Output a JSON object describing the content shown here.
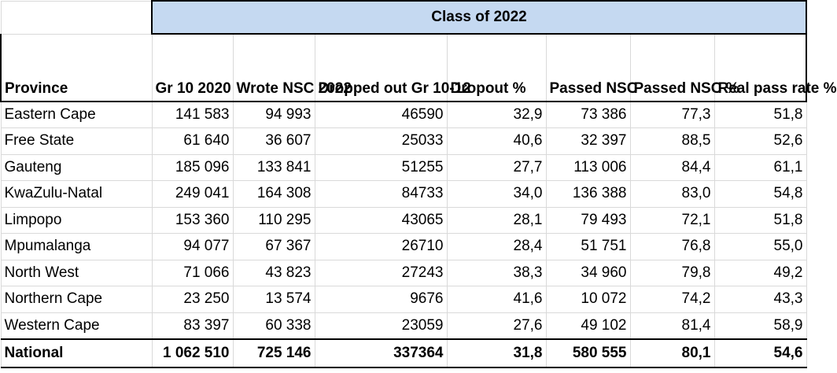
{
  "table": {
    "group_header": "Class of 2022",
    "columns": [
      "Province",
      "Gr 10 2020",
      "Wrote NSC 2022",
      "Dropped out Gr 10-12",
      "Dropout %",
      "Passed NSC",
      "Passed NSC %",
      "Real pass rate %"
    ],
    "rows": [
      [
        "Eastern Cape",
        "141 583",
        "94 993",
        "46590",
        "32,9",
        "73 386",
        "77,3",
        "51,8"
      ],
      [
        "Free State",
        "61 640",
        "36 607",
        "25033",
        "40,6",
        "32 397",
        "88,5",
        "52,6"
      ],
      [
        "Gauteng",
        "185 096",
        "133 841",
        "51255",
        "27,7",
        "113 006",
        "84,4",
        "61,1"
      ],
      [
        "KwaZulu-Natal",
        "249 041",
        "164 308",
        "84733",
        "34,0",
        "136 388",
        "83,0",
        "54,8"
      ],
      [
        "Limpopo",
        "153 360",
        "110 295",
        "43065",
        "28,1",
        "79 493",
        "72,1",
        "51,8"
      ],
      [
        "Mpumalanga",
        "94 077",
        "67 367",
        "26710",
        "28,4",
        "51 751",
        "76,8",
        "55,0"
      ],
      [
        "North West",
        "71 066",
        "43 823",
        "27243",
        "38,3",
        "34 960",
        "79,8",
        "49,2"
      ],
      [
        "Northern Cape",
        "23 250",
        "13 574",
        "9676",
        "41,6",
        "10 072",
        "74,2",
        "43,3"
      ],
      [
        "Western Cape",
        "83 397",
        "60 338",
        "23059",
        "27,6",
        "49 102",
        "81,4",
        "58,9"
      ]
    ],
    "total": [
      "National",
      "1 062 510",
      "725 146",
      "337364",
      "31,8",
      "580 555",
      "80,1",
      "54,6"
    ]
  },
  "colors": {
    "header_fill": "#c5d9f1",
    "border": "#000000",
    "gridline": "#d9d9d9"
  }
}
